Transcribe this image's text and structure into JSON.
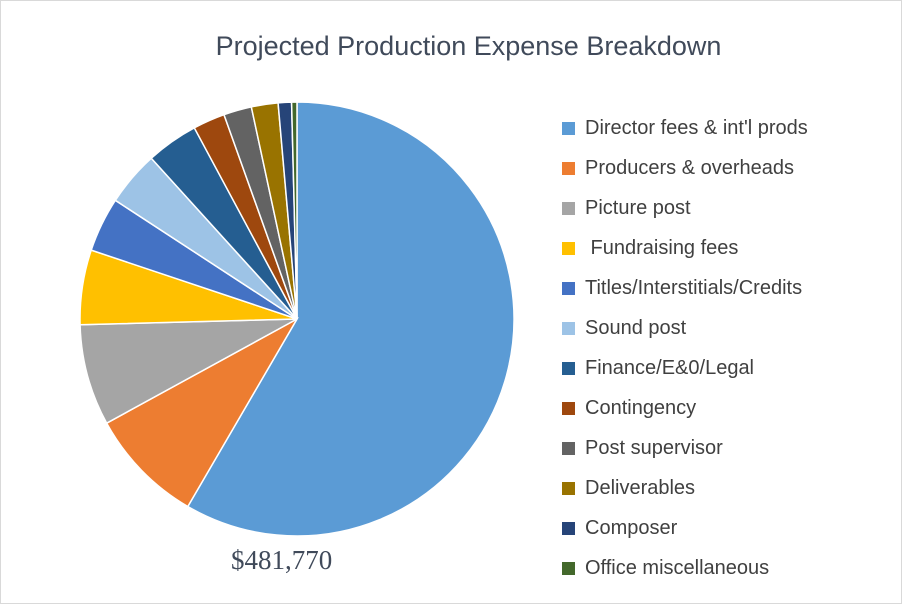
{
  "chart_data": {
    "type": "pie",
    "title": "Projected Production Expense Breakdown",
    "total_label": "$481,770",
    "legend_position": "right",
    "start_angle_deg": 0,
    "direction": "clockwise",
    "slices": [
      {
        "label": "Director fees & int'l prods",
        "value": 58.8,
        "color": "#5b9bd5"
      },
      {
        "label": "Producers & overheads",
        "value": 8.7,
        "color": "#ed7d31"
      },
      {
        "label": "Picture post",
        "value": 7.6,
        "color": "#a5a5a5"
      },
      {
        "label": " Fundraising fees",
        "value": 5.6,
        "color": "#ffc000"
      },
      {
        "label": "Titles/Interstitials/Credits",
        "value": 4.1,
        "color": "#4472c4"
      },
      {
        "label": "Sound post",
        "value": 4.1,
        "color": "#9dc3e6"
      },
      {
        "label": "Finance/E&0/Legal",
        "value": 3.9,
        "color": "#255e91"
      },
      {
        "label": "Contingency",
        "value": 2.4,
        "color": "#9e480e"
      },
      {
        "label": "Post supervisor",
        "value": 2.1,
        "color": "#636363"
      },
      {
        "label": "Deliverables",
        "value": 2.0,
        "color": "#997300"
      },
      {
        "label": "Composer",
        "value": 1.0,
        "color": "#264478"
      },
      {
        "label": "Office miscellaneous",
        "value": 0.4,
        "color": "#43682b"
      }
    ]
  }
}
